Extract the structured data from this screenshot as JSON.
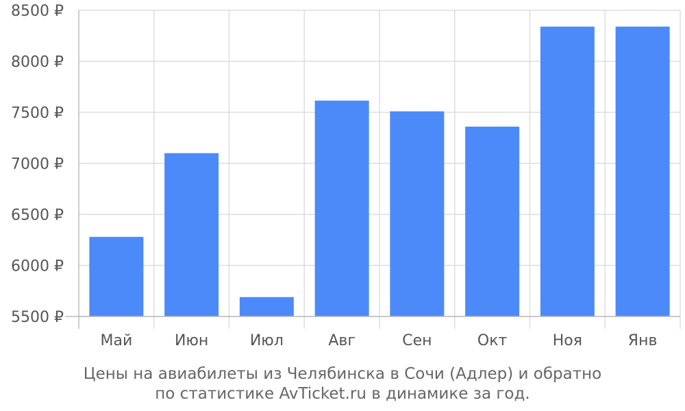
{
  "chart_data": {
    "type": "bar",
    "categories": [
      "Май",
      "Июн",
      "Июл",
      "Авг",
      "Сен",
      "Окт",
      "Ноя",
      "Янв"
    ],
    "values": [
      6280,
      7100,
      5690,
      7615,
      7510,
      7360,
      8340,
      8340
    ],
    "ylim": [
      5500,
      8500
    ],
    "y_ticks": [
      5500,
      6000,
      6500,
      7000,
      7500,
      8000,
      8500
    ],
    "y_tick_suffix": " ₽",
    "grid": true,
    "title": "",
    "xlabel": "",
    "ylabel": "",
    "bar_color": "#4d8af9",
    "grid_color": "#dddddd",
    "axis_color": "#bbbbbb",
    "text_color": "#555555"
  },
  "caption": {
    "line1": "Цены на авиабилеты из Челябинска в Сочи (Адлер) и обратно",
    "line2": "по статистике AvTicket.ru в динамике за год."
  }
}
